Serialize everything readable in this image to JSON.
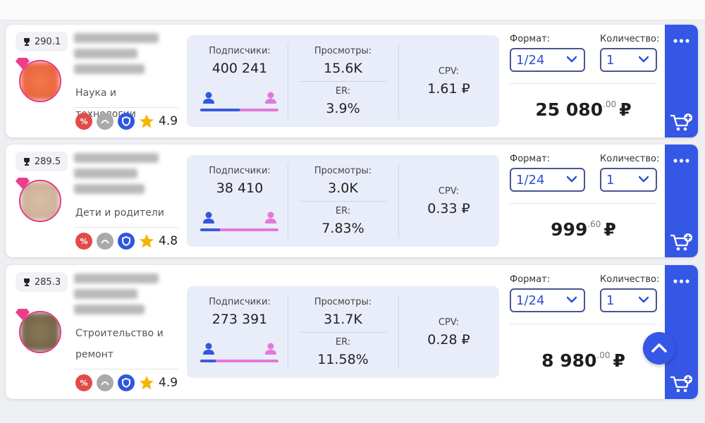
{
  "labels": {
    "subscribers": "Подписчики:",
    "views": "Просмотры:",
    "er": "ER:",
    "cpv": "CPV:",
    "format": "Формат:",
    "quantity": "Количество:",
    "discount": "%"
  },
  "cards": [
    {
      "rank": "290.1",
      "category": "Наука и технологии",
      "rating": "4.9",
      "subscribers": "400 241",
      "views": "15.6K",
      "er": "3.9%",
      "cpv": "1.61 ₽",
      "format": "1/24",
      "quantity": "1",
      "price": "25 080",
      "price_cents": ".00",
      "currency": "₽",
      "male_share": 50
    },
    {
      "rank": "289.5",
      "category": "Дети и родители",
      "rating": "4.8",
      "subscribers": "38 410",
      "views": "3.0K",
      "er": "7.83%",
      "cpv": "0.33 ₽",
      "format": "1/24",
      "quantity": "1",
      "price": "999",
      "price_cents": ".60",
      "currency": "₽",
      "male_share": 25
    },
    {
      "rank": "285.3",
      "category": "Строительство и ремонт",
      "rating": "4.9",
      "subscribers": "273 391",
      "views": "31.7K",
      "er": "11.58%",
      "cpv": "0.28 ₽",
      "format": "1/24",
      "quantity": "1",
      "price": "8 980",
      "price_cents": ".00",
      "currency": "₽",
      "male_share": 20
    }
  ]
}
